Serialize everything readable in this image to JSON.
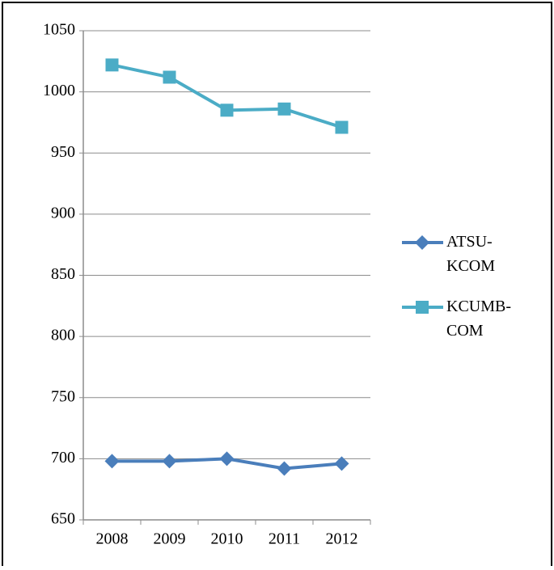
{
  "chart_data": {
    "type": "line",
    "categories": [
      "2008",
      "2009",
      "2010",
      "2011",
      "2012"
    ],
    "series": [
      {
        "name": "ATSU-KCOM",
        "color": "#4a7ebb",
        "marker": "diamond",
        "values": [
          698,
          698,
          700,
          692,
          696
        ]
      },
      {
        "name": "KCUMB-COM",
        "color": "#4bacc6",
        "marker": "square",
        "values": [
          1022,
          1012,
          985,
          986,
          971
        ]
      }
    ],
    "ylim": [
      650,
      1050
    ],
    "yticks": [
      650,
      700,
      750,
      800,
      850,
      900,
      950,
      1000,
      1050
    ],
    "grid": true,
    "legend": "right"
  }
}
